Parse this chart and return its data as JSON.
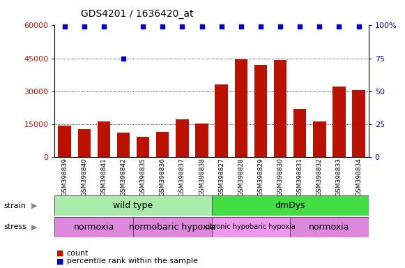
{
  "title": "GDS4201 / 1636420_at",
  "samples": [
    "GSM398839",
    "GSM398840",
    "GSM398841",
    "GSM398842",
    "GSM398835",
    "GSM398836",
    "GSM398837",
    "GSM398838",
    "GSM398827",
    "GSM398828",
    "GSM398829",
    "GSM398830",
    "GSM398831",
    "GSM398832",
    "GSM398833",
    "GSM398834"
  ],
  "counts": [
    14200,
    12700,
    16200,
    11200,
    9200,
    11500,
    17200,
    15200,
    33000,
    44500,
    42000,
    44200,
    22000,
    16000,
    32000,
    30500
  ],
  "percentile_ranks": [
    99,
    99,
    99,
    75,
    99,
    99,
    99,
    99,
    99,
    99,
    99,
    99,
    99,
    99,
    99,
    99
  ],
  "ylim_left": [
    0,
    60000
  ],
  "ylim_right": [
    0,
    100
  ],
  "yticks_left": [
    0,
    15000,
    30000,
    45000,
    60000
  ],
  "yticks_right": [
    0,
    25,
    50,
    75,
    100
  ],
  "ytick_labels_right": [
    "0",
    "25",
    "50",
    "75",
    "100%"
  ],
  "bar_color": "#bb1100",
  "dot_color": "#0000bb",
  "strain_groups": [
    {
      "label": "wild type",
      "start": 0,
      "end": 8,
      "color": "#aaeaaa"
    },
    {
      "label": "dmDys",
      "start": 8,
      "end": 16,
      "color": "#44dd44"
    }
  ],
  "stress_groups": [
    {
      "label": "normoxia",
      "start": 0,
      "end": 4,
      "color": "#dd88dd"
    },
    {
      "label": "normobaric hypoxia",
      "start": 4,
      "end": 8,
      "color": "#dd88dd"
    },
    {
      "label": "chronic hypobaric hypoxia",
      "start": 8,
      "end": 12,
      "color": "#ee99ee"
    },
    {
      "label": "normoxia",
      "start": 12,
      "end": 16,
      "color": "#dd88dd"
    }
  ],
  "legend_count_label": "count",
  "legend_pct_label": "percentile rank within the sample",
  "strain_label": "strain",
  "stress_label": "stress"
}
